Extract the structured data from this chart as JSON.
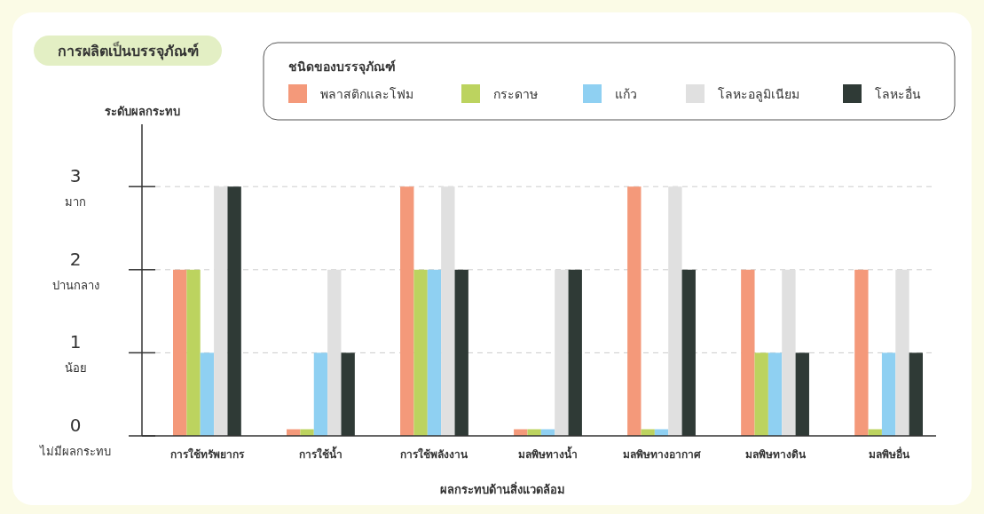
{
  "chart_data": {
    "type": "bar",
    "title": "การผลิตเป็นบรรจุภัณฑ์",
    "ylabel": "ระดับผลกระทบ",
    "xlabel": "ผลกระทบด้านสิ่งแวดล้อม",
    "legend_title": "ชนิดของบรรจุภัณฑ์",
    "categories": [
      "การใช้ทรัพยากร",
      "การใช้น้ำ",
      "การใช้พลังงาน",
      "มลพิษทางน้ำ",
      "มลพิษทางอากาศ",
      "มลพิษทางดิน",
      "มลพิษอื่น"
    ],
    "series": [
      {
        "name": "พลาสติกและโฟม",
        "color": "#f4997a",
        "values": [
          2,
          0.08,
          3,
          0.08,
          3,
          2,
          2
        ]
      },
      {
        "name": "กระดาษ",
        "color": "#bcd35f",
        "values": [
          2,
          0.08,
          2,
          0.08,
          0.08,
          1,
          0.08
        ]
      },
      {
        "name": "แก้ว",
        "color": "#8fd0f2",
        "values": [
          1,
          1,
          2,
          0.08,
          0.08,
          1,
          1
        ]
      },
      {
        "name": "โลหะอลูมิเนียม",
        "color": "#e0e0e0",
        "values": [
          3,
          2,
          3,
          2,
          3,
          2,
          2
        ]
      },
      {
        "name": "โลหะอื่น",
        "color": "#2f3a36",
        "values": [
          3,
          1,
          2,
          2,
          2,
          1,
          1
        ]
      }
    ],
    "ylim": [
      0,
      3.75
    ],
    "yticks": [
      {
        "value": 0,
        "label": "0$_{ไม่มีผลกระทบ}$"
      },
      {
        "value": 1,
        "label": "1$_{น้อย}$"
      },
      {
        "value": 2,
        "label": "2$_{ปานกลาง}$"
      },
      {
        "value": 3,
        "label": "3$_{มาก}$"
      }
    ],
    "grid": "y",
    "legend": "top right"
  }
}
